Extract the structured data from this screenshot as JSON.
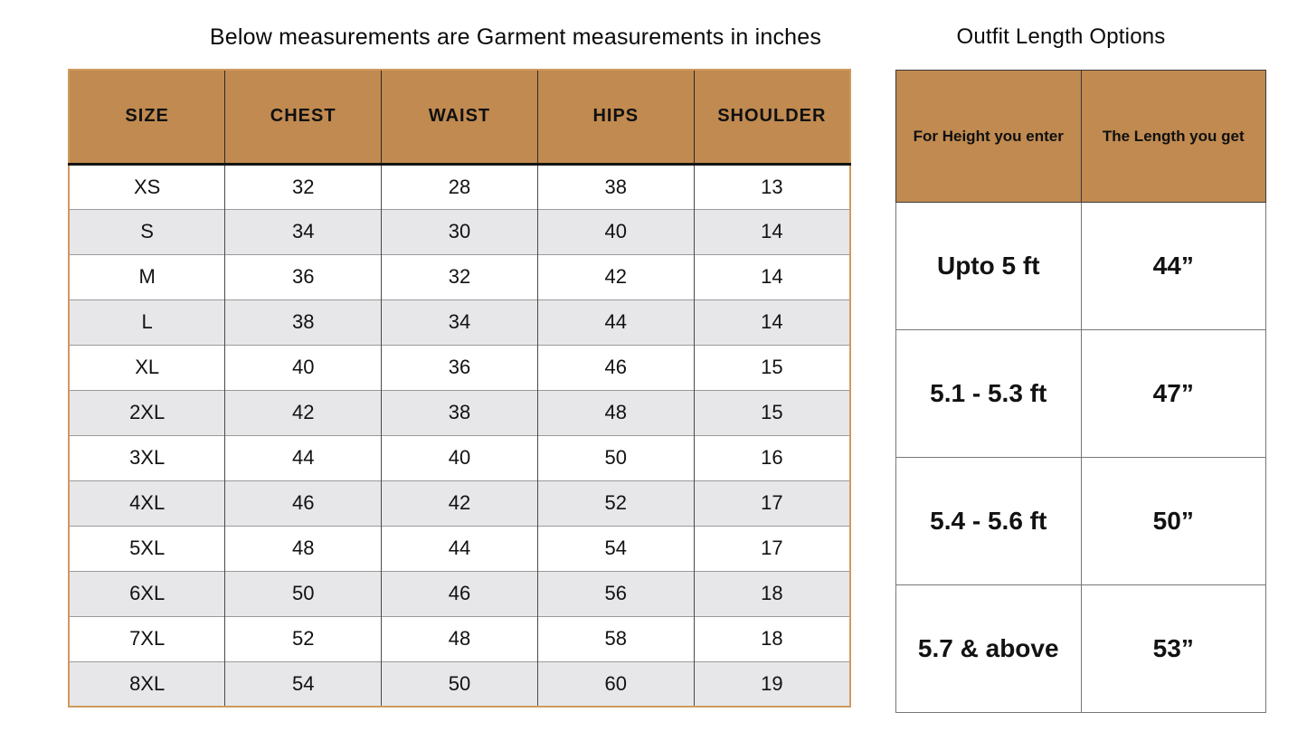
{
  "colors": {
    "header_bg": "#c08a50",
    "alt_row_bg": "#e7e6e9",
    "left_table_outer_border": "#cf9a5f",
    "grid_line": "#777777",
    "text": "#111111"
  },
  "left_table": {
    "title": "Below measurements are Garment measurements in inches",
    "headers": [
      "SIZE",
      "CHEST",
      "WAIST",
      "HIPS",
      "SHOULDER"
    ],
    "rows": [
      [
        "XS",
        "32",
        "28",
        "38",
        "13"
      ],
      [
        "S",
        "34",
        "30",
        "40",
        "14"
      ],
      [
        "M",
        "36",
        "32",
        "42",
        "14"
      ],
      [
        "L",
        "38",
        "34",
        "44",
        "14"
      ],
      [
        "XL",
        "40",
        "36",
        "46",
        "15"
      ],
      [
        "2XL",
        "42",
        "38",
        "48",
        "15"
      ],
      [
        "3XL",
        "44",
        "40",
        "50",
        "16"
      ],
      [
        "4XL",
        "46",
        "42",
        "52",
        "17"
      ],
      [
        "5XL",
        "48",
        "44",
        "54",
        "17"
      ],
      [
        "6XL",
        "50",
        "46",
        "56",
        "18"
      ],
      [
        "7XL",
        "52",
        "48",
        "58",
        "18"
      ],
      [
        "8XL",
        "54",
        "50",
        "60",
        "19"
      ]
    ]
  },
  "right_table": {
    "title": "Outfit Length Options",
    "headers": [
      "For Height you enter",
      "The Length you get"
    ],
    "rows": [
      [
        "Upto 5 ft",
        "44”"
      ],
      [
        "5.1 - 5.3 ft",
        "47”"
      ],
      [
        "5.4 - 5.6 ft",
        "50”"
      ],
      [
        "5.7 & above",
        "53”"
      ]
    ]
  }
}
